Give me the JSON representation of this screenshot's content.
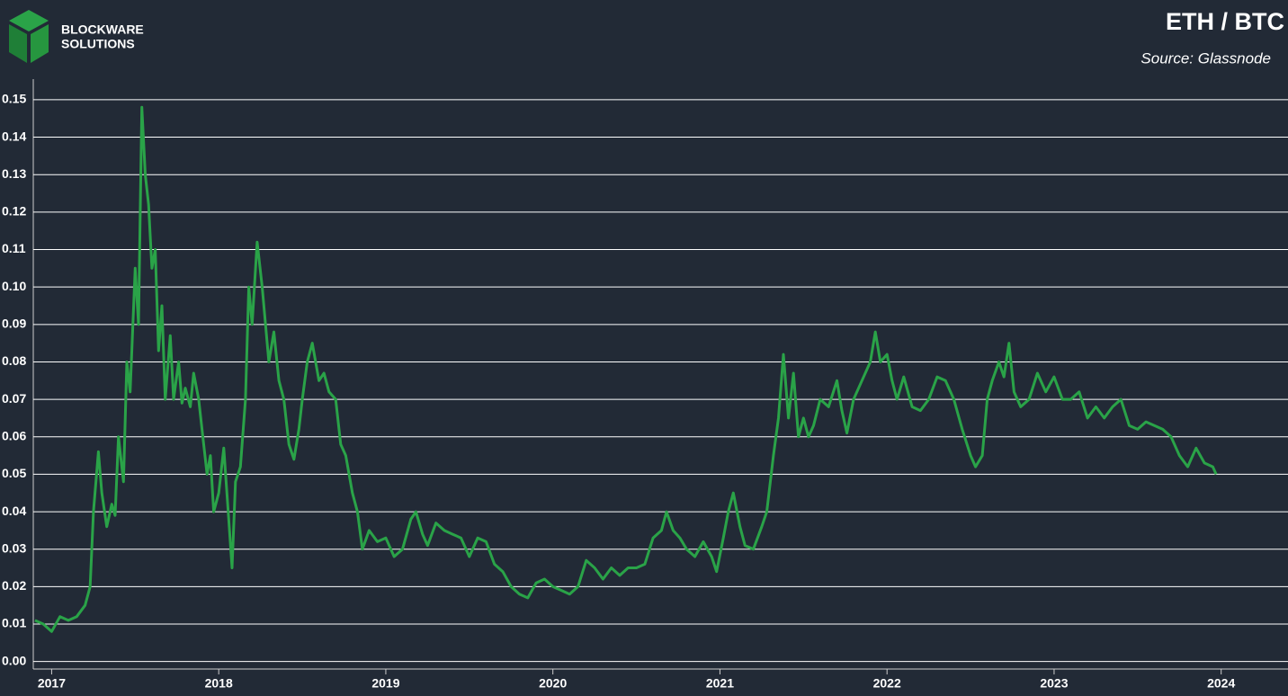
{
  "brand": {
    "line1": "BLOCKWARE",
    "line2": "SOLUTIONS"
  },
  "chart_data": {
    "type": "line",
    "title": "ETH / BTC",
    "subtitle": "Source: Glassnode",
    "x": [
      2016.9,
      2016.95,
      2017.0,
      2017.05,
      2017.1,
      2017.15,
      2017.2,
      2017.23,
      2017.25,
      2017.28,
      2017.3,
      2017.33,
      2017.36,
      2017.38,
      2017.4,
      2017.43,
      2017.45,
      2017.47,
      2017.5,
      2017.52,
      2017.54,
      2017.56,
      2017.58,
      2017.6,
      2017.62,
      2017.64,
      2017.66,
      2017.68,
      2017.71,
      2017.73,
      2017.76,
      2017.78,
      2017.8,
      2017.83,
      2017.85,
      2017.88,
      2017.9,
      2017.93,
      2017.95,
      2017.97,
      2018.0,
      2018.03,
      2018.06,
      2018.08,
      2018.1,
      2018.13,
      2018.16,
      2018.18,
      2018.2,
      2018.23,
      2018.26,
      2018.28,
      2018.3,
      2018.33,
      2018.36,
      2018.39,
      2018.42,
      2018.45,
      2018.48,
      2018.5,
      2018.53,
      2018.56,
      2018.6,
      2018.63,
      2018.66,
      2018.7,
      2018.73,
      2018.76,
      2018.8,
      2018.83,
      2018.86,
      2018.9,
      2018.95,
      2019.0,
      2019.05,
      2019.1,
      2019.15,
      2019.18,
      2019.22,
      2019.25,
      2019.3,
      2019.35,
      2019.4,
      2019.45,
      2019.5,
      2019.55,
      2019.6,
      2019.65,
      2019.7,
      2019.75,
      2019.8,
      2019.85,
      2019.9,
      2019.95,
      2020.0,
      2020.05,
      2020.1,
      2020.15,
      2020.2,
      2020.25,
      2020.3,
      2020.35,
      2020.4,
      2020.45,
      2020.5,
      2020.55,
      2020.6,
      2020.65,
      2020.68,
      2020.72,
      2020.76,
      2020.8,
      2020.85,
      2020.9,
      2020.95,
      2020.98,
      2021.02,
      2021.05,
      2021.08,
      2021.12,
      2021.15,
      2021.2,
      2021.25,
      2021.28,
      2021.32,
      2021.35,
      2021.38,
      2021.41,
      2021.44,
      2021.47,
      2021.5,
      2021.53,
      2021.56,
      2021.6,
      2021.65,
      2021.7,
      2021.73,
      2021.76,
      2021.8,
      2021.85,
      2021.9,
      2021.93,
      2021.96,
      2022.0,
      2022.03,
      2022.06,
      2022.1,
      2022.15,
      2022.2,
      2022.25,
      2022.3,
      2022.35,
      2022.4,
      2022.45,
      2022.5,
      2022.53,
      2022.57,
      2022.6,
      2022.63,
      2022.67,
      2022.7,
      2022.73,
      2022.76,
      2022.8,
      2022.85,
      2022.9,
      2022.95,
      2023.0,
      2023.05,
      2023.1,
      2023.15,
      2023.2,
      2023.25,
      2023.3,
      2023.35,
      2023.4,
      2023.45,
      2023.5,
      2023.55,
      2023.6,
      2023.65,
      2023.7,
      2023.75,
      2023.8,
      2023.85,
      2023.9,
      2023.95,
      2023.97
    ],
    "series": [
      {
        "name": "ETH / BTC",
        "color": "#2aa348",
        "values": [
          0.011,
          0.01,
          0.008,
          0.012,
          0.011,
          0.012,
          0.015,
          0.02,
          0.04,
          0.056,
          0.045,
          0.036,
          0.042,
          0.039,
          0.06,
          0.048,
          0.08,
          0.072,
          0.105,
          0.09,
          0.148,
          0.13,
          0.122,
          0.105,
          0.11,
          0.083,
          0.095,
          0.07,
          0.087,
          0.07,
          0.08,
          0.069,
          0.073,
          0.068,
          0.077,
          0.07,
          0.062,
          0.05,
          0.055,
          0.04,
          0.045,
          0.057,
          0.038,
          0.025,
          0.048,
          0.052,
          0.07,
          0.1,
          0.09,
          0.112,
          0.1,
          0.09,
          0.08,
          0.088,
          0.075,
          0.07,
          0.058,
          0.054,
          0.062,
          0.07,
          0.08,
          0.085,
          0.075,
          0.077,
          0.072,
          0.07,
          0.058,
          0.055,
          0.045,
          0.04,
          0.03,
          0.035,
          0.032,
          0.033,
          0.028,
          0.03,
          0.038,
          0.04,
          0.034,
          0.031,
          0.037,
          0.035,
          0.034,
          0.033,
          0.028,
          0.033,
          0.032,
          0.026,
          0.024,
          0.02,
          0.018,
          0.017,
          0.021,
          0.022,
          0.02,
          0.019,
          0.018,
          0.02,
          0.027,
          0.025,
          0.022,
          0.025,
          0.023,
          0.025,
          0.025,
          0.026,
          0.033,
          0.035,
          0.04,
          0.035,
          0.033,
          0.03,
          0.028,
          0.032,
          0.028,
          0.024,
          0.033,
          0.04,
          0.045,
          0.036,
          0.031,
          0.03,
          0.036,
          0.04,
          0.055,
          0.065,
          0.082,
          0.065,
          0.077,
          0.06,
          0.065,
          0.06,
          0.063,
          0.07,
          0.068,
          0.075,
          0.067,
          0.061,
          0.07,
          0.075,
          0.08,
          0.088,
          0.08,
          0.082,
          0.075,
          0.07,
          0.076,
          0.068,
          0.067,
          0.07,
          0.076,
          0.075,
          0.07,
          0.062,
          0.055,
          0.052,
          0.055,
          0.07,
          0.075,
          0.08,
          0.076,
          0.085,
          0.072,
          0.068,
          0.07,
          0.077,
          0.072,
          0.076,
          0.07,
          0.07,
          0.072,
          0.065,
          0.068,
          0.065,
          0.068,
          0.07,
          0.063,
          0.062,
          0.064,
          0.063,
          0.062,
          0.06,
          0.055,
          0.052,
          0.057,
          0.053,
          0.052,
          0.05
        ]
      }
    ],
    "xlim": [
      2016.89,
      2024.4
    ],
    "xticks": [
      2017,
      2018,
      2019,
      2020,
      2021,
      2022,
      2023,
      2024
    ],
    "ylim": [
      -0.002,
      0.1555
    ],
    "yticks": [
      {
        "value": 0,
        "label": "0.00"
      },
      0.01,
      0.02,
      0.03,
      0.04,
      0.05,
      0.06,
      0.07,
      0.08,
      0.09,
      {
        "value": 0.1,
        "label": "0.10"
      },
      0.11,
      0.12,
      0.13,
      0.14,
      0.15
    ],
    "grid": true
  }
}
